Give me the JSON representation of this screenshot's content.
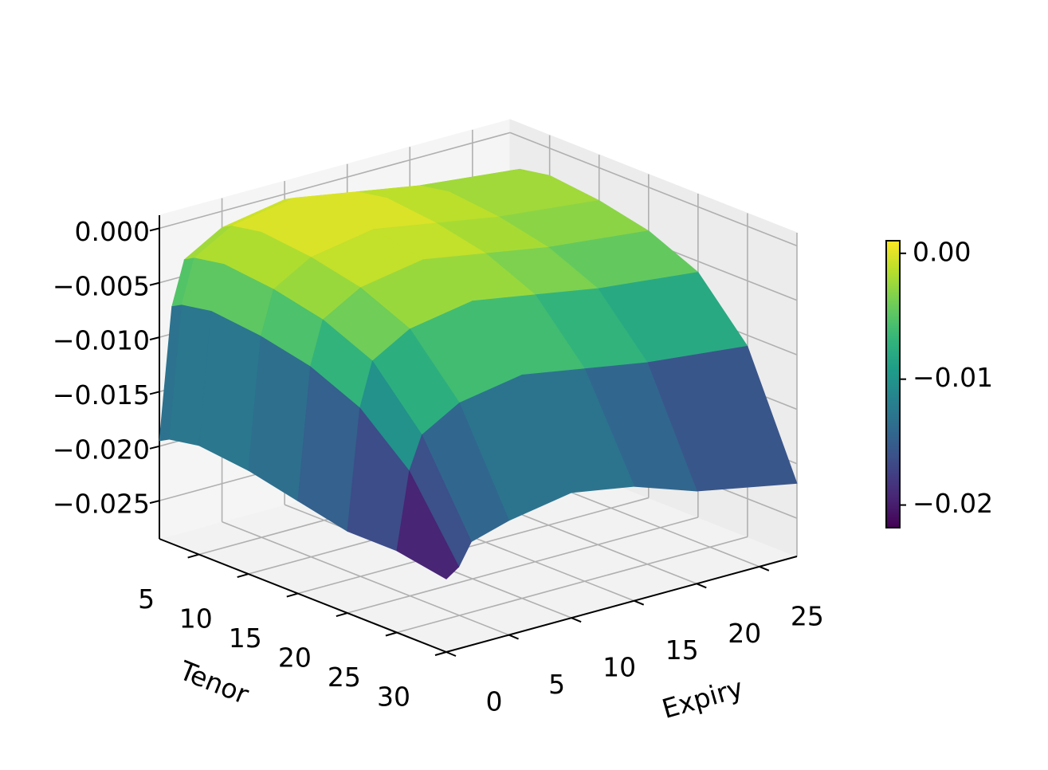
{
  "chart_data": {
    "type": "surface",
    "x_label": "Expiry",
    "y_label": "Tenor",
    "x": [
      0,
      1,
      2,
      5,
      10,
      15,
      20,
      28
    ],
    "y": [
      1,
      2,
      5,
      10,
      15,
      20,
      25,
      30
    ],
    "z": [
      [
        -0.0195,
        -0.0075,
        -0.0035,
        -0.0015,
        -0.0005,
        -0.0015,
        -0.0025,
        -0.0035
      ],
      [
        -0.019,
        -0.007,
        -0.003,
        -0.001,
        0.0,
        -0.001,
        -0.002,
        -0.003
      ],
      [
        -0.0185,
        -0.0065,
        -0.0025,
        -0.0005,
        0.0007,
        -0.0005,
        -0.0015,
        -0.0025
      ],
      [
        -0.019,
        -0.007,
        -0.003,
        -0.001,
        0.0,
        -0.001,
        -0.002,
        -0.003
      ],
      [
        -0.02,
        -0.008,
        -0.004,
        -0.002,
        -0.001,
        -0.002,
        -0.003,
        -0.004
      ],
      [
        -0.021,
        -0.01,
        -0.006,
        -0.004,
        -0.003,
        -0.004,
        -0.005,
        -0.006
      ],
      [
        -0.021,
        -0.014,
        -0.011,
        -0.009,
        -0.008,
        -0.009,
        -0.01,
        -0.011
      ],
      [
        -0.0218,
        -0.021,
        -0.019,
        -0.018,
        -0.017,
        -0.018,
        -0.02,
        -0.0218
      ]
    ],
    "xlim": [
      0,
      28
    ],
    "ylim": [
      1,
      30
    ],
    "zlim": [
      -0.0285,
      0.0012
    ],
    "xticks": [
      0,
      5,
      10,
      15,
      20,
      25
    ],
    "yticks": [
      5,
      10,
      15,
      20,
      25,
      30
    ],
    "zticks": [
      {
        "value": 0,
        "label": "0.000"
      },
      {
        "value": -0.005,
        "label": "−0.005"
      },
      {
        "value": -0.01,
        "label": "−0.010"
      },
      {
        "value": -0.015,
        "label": "−0.015"
      },
      {
        "value": -0.02,
        "label": "−0.020"
      },
      {
        "value": -0.025,
        "label": "−0.025"
      }
    ],
    "colormap": "viridis",
    "colorbar": {
      "lim": [
        -0.0218,
        0.001
      ],
      "ticks": [
        {
          "value": 0,
          "label": "0.00"
        },
        {
          "value": -0.01,
          "label": "−0.01"
        },
        {
          "value": -0.02,
          "label": "−0.02"
        }
      ]
    },
    "grid": true
  }
}
